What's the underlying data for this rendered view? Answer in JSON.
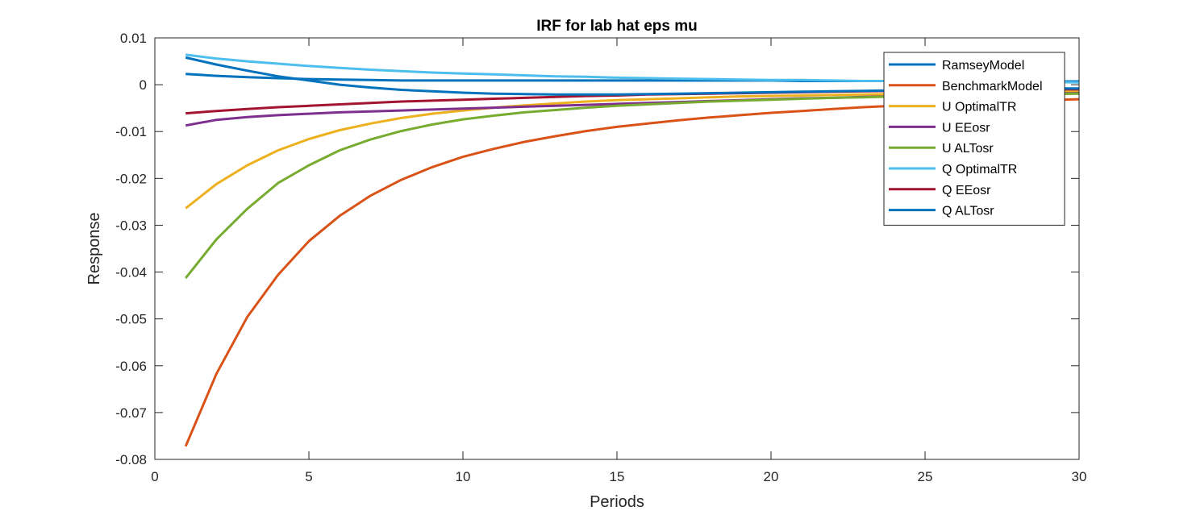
{
  "chart_data": {
    "type": "line",
    "title": "IRF for lab hat eps mu",
    "xlabel": "Periods",
    "ylabel": "Response",
    "xlim": [
      0,
      30
    ],
    "ylim": [
      -0.08,
      0.01
    ],
    "xticks": [
      0,
      5,
      10,
      15,
      20,
      25,
      30
    ],
    "yticks": [
      -0.08,
      -0.07,
      -0.06,
      -0.05,
      -0.04,
      -0.03,
      -0.02,
      -0.01,
      0,
      0.01
    ],
    "ytick_labels": [
      "-0.08",
      "-0.07",
      "-0.06",
      "-0.05",
      "-0.04",
      "-0.03",
      "-0.02",
      "-0.01",
      "0",
      "0.01"
    ],
    "grid": false,
    "legend_position": "top-right",
    "x": [
      1,
      2,
      3,
      4,
      5,
      6,
      7,
      8,
      9,
      10,
      11,
      12,
      13,
      14,
      15,
      16,
      17,
      18,
      19,
      20,
      21,
      22,
      23,
      24,
      25,
      26,
      27,
      28,
      29,
      30
    ],
    "series": [
      {
        "name": "RamseyModel",
        "color": "#0072BD",
        "values": [
          0.0023,
          0.0019,
          0.0016,
          0.0014,
          0.0012,
          0.0011,
          0.001,
          0.0009,
          0.0009,
          0.0009,
          0.0009,
          0.0009,
          0.0009,
          0.0009,
          0.0009,
          0.0009,
          0.0009,
          0.0009,
          0.0009,
          0.0009,
          0.0008,
          0.0008,
          0.0008,
          0.0008,
          0.0008,
          0.0008,
          0.0007,
          0.0007,
          0.0007,
          0.0007
        ]
      },
      {
        "name": "BenchmarkModel",
        "color": "#D95319",
        "values": [
          -0.0772,
          -0.0617,
          -0.0496,
          -0.0406,
          -0.0334,
          -0.028,
          -0.0237,
          -0.0203,
          -0.0176,
          -0.0154,
          -0.0137,
          -0.0122,
          -0.011,
          -0.0099,
          -0.009,
          -0.0083,
          -0.0076,
          -0.007,
          -0.0065,
          -0.006,
          -0.0056,
          -0.0052,
          -0.0048,
          -0.0045,
          -0.0042,
          -0.004,
          -0.0037,
          -0.0035,
          -0.0033,
          -0.0031
        ]
      },
      {
        "name": "U OptimalTR",
        "color": "#EDB120",
        "values": [
          -0.0264,
          -0.0212,
          -0.0172,
          -0.014,
          -0.0116,
          -0.0097,
          -0.0083,
          -0.0071,
          -0.0062,
          -0.0055,
          -0.0049,
          -0.0044,
          -0.004,
          -0.0036,
          -0.0033,
          -0.0031,
          -0.0029,
          -0.0027,
          -0.0025,
          -0.0024,
          -0.0023,
          -0.0022,
          -0.0021,
          -0.002,
          -0.0019,
          -0.0018,
          -0.0017,
          -0.0016,
          -0.0015,
          -0.0015
        ]
      },
      {
        "name": "U EEosr",
        "color": "#7E2F8E",
        "values": [
          -0.0087,
          -0.0075,
          -0.0069,
          -0.0065,
          -0.0062,
          -0.0059,
          -0.0057,
          -0.0055,
          -0.0053,
          -0.0051,
          -0.0049,
          -0.0047,
          -0.0045,
          -0.0043,
          -0.0041,
          -0.0039,
          -0.0037,
          -0.0035,
          -0.0033,
          -0.0031,
          -0.0029,
          -0.0028,
          -0.0026,
          -0.0025,
          -0.0024,
          -0.0022,
          -0.0021,
          -0.002,
          -0.0019,
          -0.0018
        ]
      },
      {
        "name": "U ALTosr",
        "color": "#77AC30",
        "values": [
          -0.0413,
          -0.033,
          -0.0265,
          -0.021,
          -0.0172,
          -0.014,
          -0.0117,
          -0.0099,
          -0.0085,
          -0.0074,
          -0.0066,
          -0.0059,
          -0.0054,
          -0.0049,
          -0.0045,
          -0.0042,
          -0.0039,
          -0.0036,
          -0.0034,
          -0.0032,
          -0.003,
          -0.0028,
          -0.0027,
          -0.0025,
          -0.0024,
          -0.0023,
          -0.0022,
          -0.0021,
          -0.002,
          -0.0019
        ]
      },
      {
        "name": "Q OptimalTR",
        "color": "#4DBEEE",
        "values": [
          0.0064,
          0.0056,
          0.005,
          0.0045,
          0.004,
          0.0036,
          0.0032,
          0.0029,
          0.0026,
          0.0024,
          0.0022,
          0.002,
          0.0018,
          0.0017,
          0.0015,
          0.0014,
          0.0013,
          0.0012,
          0.0011,
          0.001,
          0.001,
          0.0009,
          0.0008,
          0.0008,
          0.0007,
          0.0007,
          0.0006,
          0.0006,
          0.0006,
          0.0005
        ]
      },
      {
        "name": "Q EEosr",
        "color": "#A2142F",
        "values": [
          -0.0061,
          -0.0056,
          -0.0052,
          -0.0048,
          -0.0045,
          -0.0042,
          -0.0039,
          -0.0036,
          -0.0034,
          -0.0032,
          -0.003,
          -0.0028,
          -0.0026,
          -0.0024,
          -0.0023,
          -0.0021,
          -0.002,
          -0.0019,
          -0.0018,
          -0.0017,
          -0.0016,
          -0.0015,
          -0.0014,
          -0.0013,
          -0.0013,
          -0.0012,
          -0.0011,
          -0.0011,
          -0.001,
          -0.001
        ]
      },
      {
        "name": "Q ALTosr",
        "color": "#0072BD",
        "values": [
          0.0058,
          0.0043,
          0.003,
          0.0018,
          0.0009,
          0.0,
          -0.0006,
          -0.0011,
          -0.0014,
          -0.0017,
          -0.0019,
          -0.002,
          -0.0021,
          -0.0021,
          -0.0021,
          -0.002,
          -0.0019,
          -0.0018,
          -0.0017,
          -0.0016,
          -0.0015,
          -0.0014,
          -0.0013,
          -0.0012,
          -0.0011,
          -0.001,
          -0.0009,
          -0.0009,
          -0.0008,
          -0.0008
        ]
      }
    ]
  }
}
